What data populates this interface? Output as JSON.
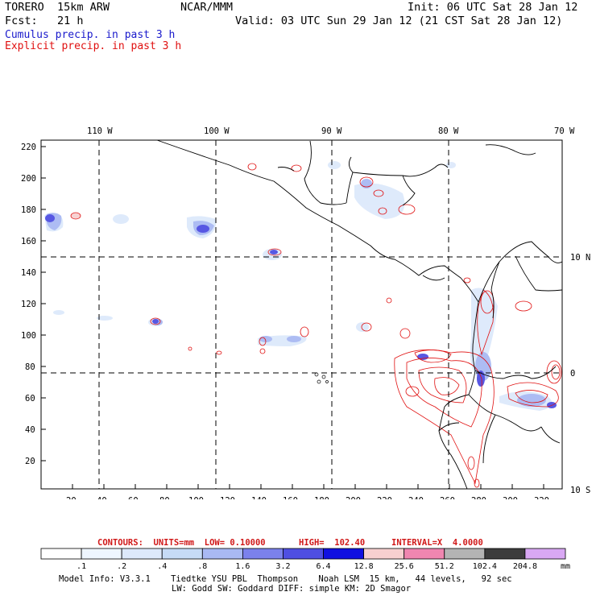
{
  "header": {
    "model": "TORERO  15km ARW",
    "center": "NCAR/MMM",
    "init": "Init: 06 UTC Sat 28 Jan 12",
    "fcst": "Fcst:   21 h",
    "valid": "Valid: 03 UTC Sun 29 Jan 12 (21 CST Sat 28 Jan 12)",
    "field1": "Cumulus precip. in past 3 h",
    "field2": "Explicit precip. in past 3 h",
    "field1_color": "#1a1acc",
    "field2_color": "#e01010"
  },
  "map": {
    "lon_labels": [
      "110 W",
      "100 W",
      "90 W",
      "80 W",
      "70 W"
    ],
    "lat_labels": [
      "10 N",
      "0",
      "10 S"
    ],
    "y_ticks": [
      "220",
      "200",
      "180",
      "160",
      "140",
      "120",
      "100",
      "80",
      "60",
      "40",
      "20"
    ],
    "x_ticks": [
      "20",
      "40",
      "60",
      "80",
      "100",
      "120",
      "140",
      "160",
      "180",
      "200",
      "220",
      "240",
      "260",
      "280",
      "300",
      "320"
    ]
  },
  "contours": {
    "units_text": "CONTOURS:  UNITS=mm  LOW= 0.10000",
    "high_text": "HIGH=  102.40",
    "interval_text": "INTERVAL=X  4.0000"
  },
  "colorbar": {
    "colors": [
      "#ffffff",
      "#eef6ff",
      "#dde9fb",
      "#c6dbf6",
      "#a9b9f3",
      "#7b81ec",
      "#4f4fe2",
      "#1010e0",
      "#f7d0d0",
      "#f086b0",
      "#b4b4b4",
      "#3c3c3c",
      "#d9a8f4"
    ],
    "labels": [
      ".1",
      ".2",
      ".4",
      ".8",
      "1.6",
      "3.2",
      "6.4",
      "12.8",
      "25.6",
      "51.2",
      "102.4",
      "204.8"
    ],
    "unit": "mm"
  },
  "footer": {
    "line1": "Model Info: V3.3.1    Tiedtke YSU PBL  Thompson    Noah LSM  15 km,   44 levels,   92 sec",
    "line2": "LW: Godd SW: Goddard DIFF: simple KM: 2D Smagor"
  }
}
